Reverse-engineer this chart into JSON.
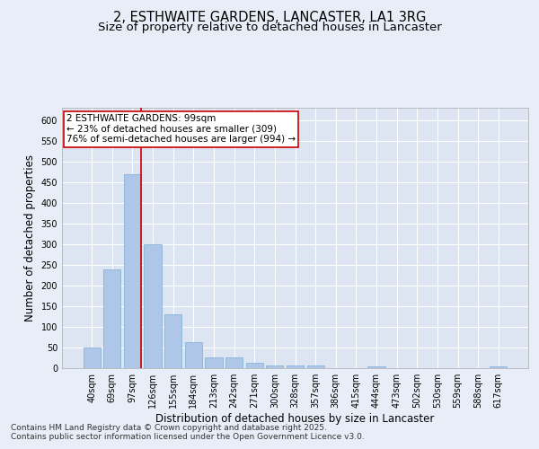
{
  "title": "2, ESTHWAITE GARDENS, LANCASTER, LA1 3RG",
  "subtitle": "Size of property relative to detached houses in Lancaster",
  "xlabel": "Distribution of detached houses by size in Lancaster",
  "ylabel": "Number of detached properties",
  "categories": [
    "40sqm",
    "69sqm",
    "97sqm",
    "126sqm",
    "155sqm",
    "184sqm",
    "213sqm",
    "242sqm",
    "271sqm",
    "300sqm",
    "328sqm",
    "357sqm",
    "386sqm",
    "415sqm",
    "444sqm",
    "473sqm",
    "502sqm",
    "530sqm",
    "559sqm",
    "588sqm",
    "617sqm"
  ],
  "values": [
    50,
    238,
    470,
    300,
    130,
    63,
    27,
    27,
    13,
    7,
    7,
    7,
    0,
    0,
    4,
    0,
    0,
    0,
    0,
    0,
    4
  ],
  "bar_color": "#aec6e8",
  "bar_edge_color": "#7aaed6",
  "vline_x_index": 2,
  "vline_color": "#cc0000",
  "annotation_text": "2 ESTHWAITE GARDENS: 99sqm\n← 23% of detached houses are smaller (309)\n76% of semi-detached houses are larger (994) →",
  "annotation_box_color": "#ffffff",
  "annotation_box_edge_color": "#cc0000",
  "ylim": [
    0,
    630
  ],
  "yticks": [
    0,
    50,
    100,
    150,
    200,
    250,
    300,
    350,
    400,
    450,
    500,
    550,
    600
  ],
  "background_color": "#e8eef7",
  "plot_bg_color": "#dde5f3",
  "grid_color": "#ffffff",
  "footer_line1": "Contains HM Land Registry data © Crown copyright and database right 2025.",
  "footer_line2": "Contains public sector information licensed under the Open Government Licence v3.0.",
  "title_fontsize": 10.5,
  "subtitle_fontsize": 9.5,
  "axis_label_fontsize": 8.5,
  "tick_fontsize": 7,
  "footer_fontsize": 6.5,
  "annotation_fontsize": 7.5
}
